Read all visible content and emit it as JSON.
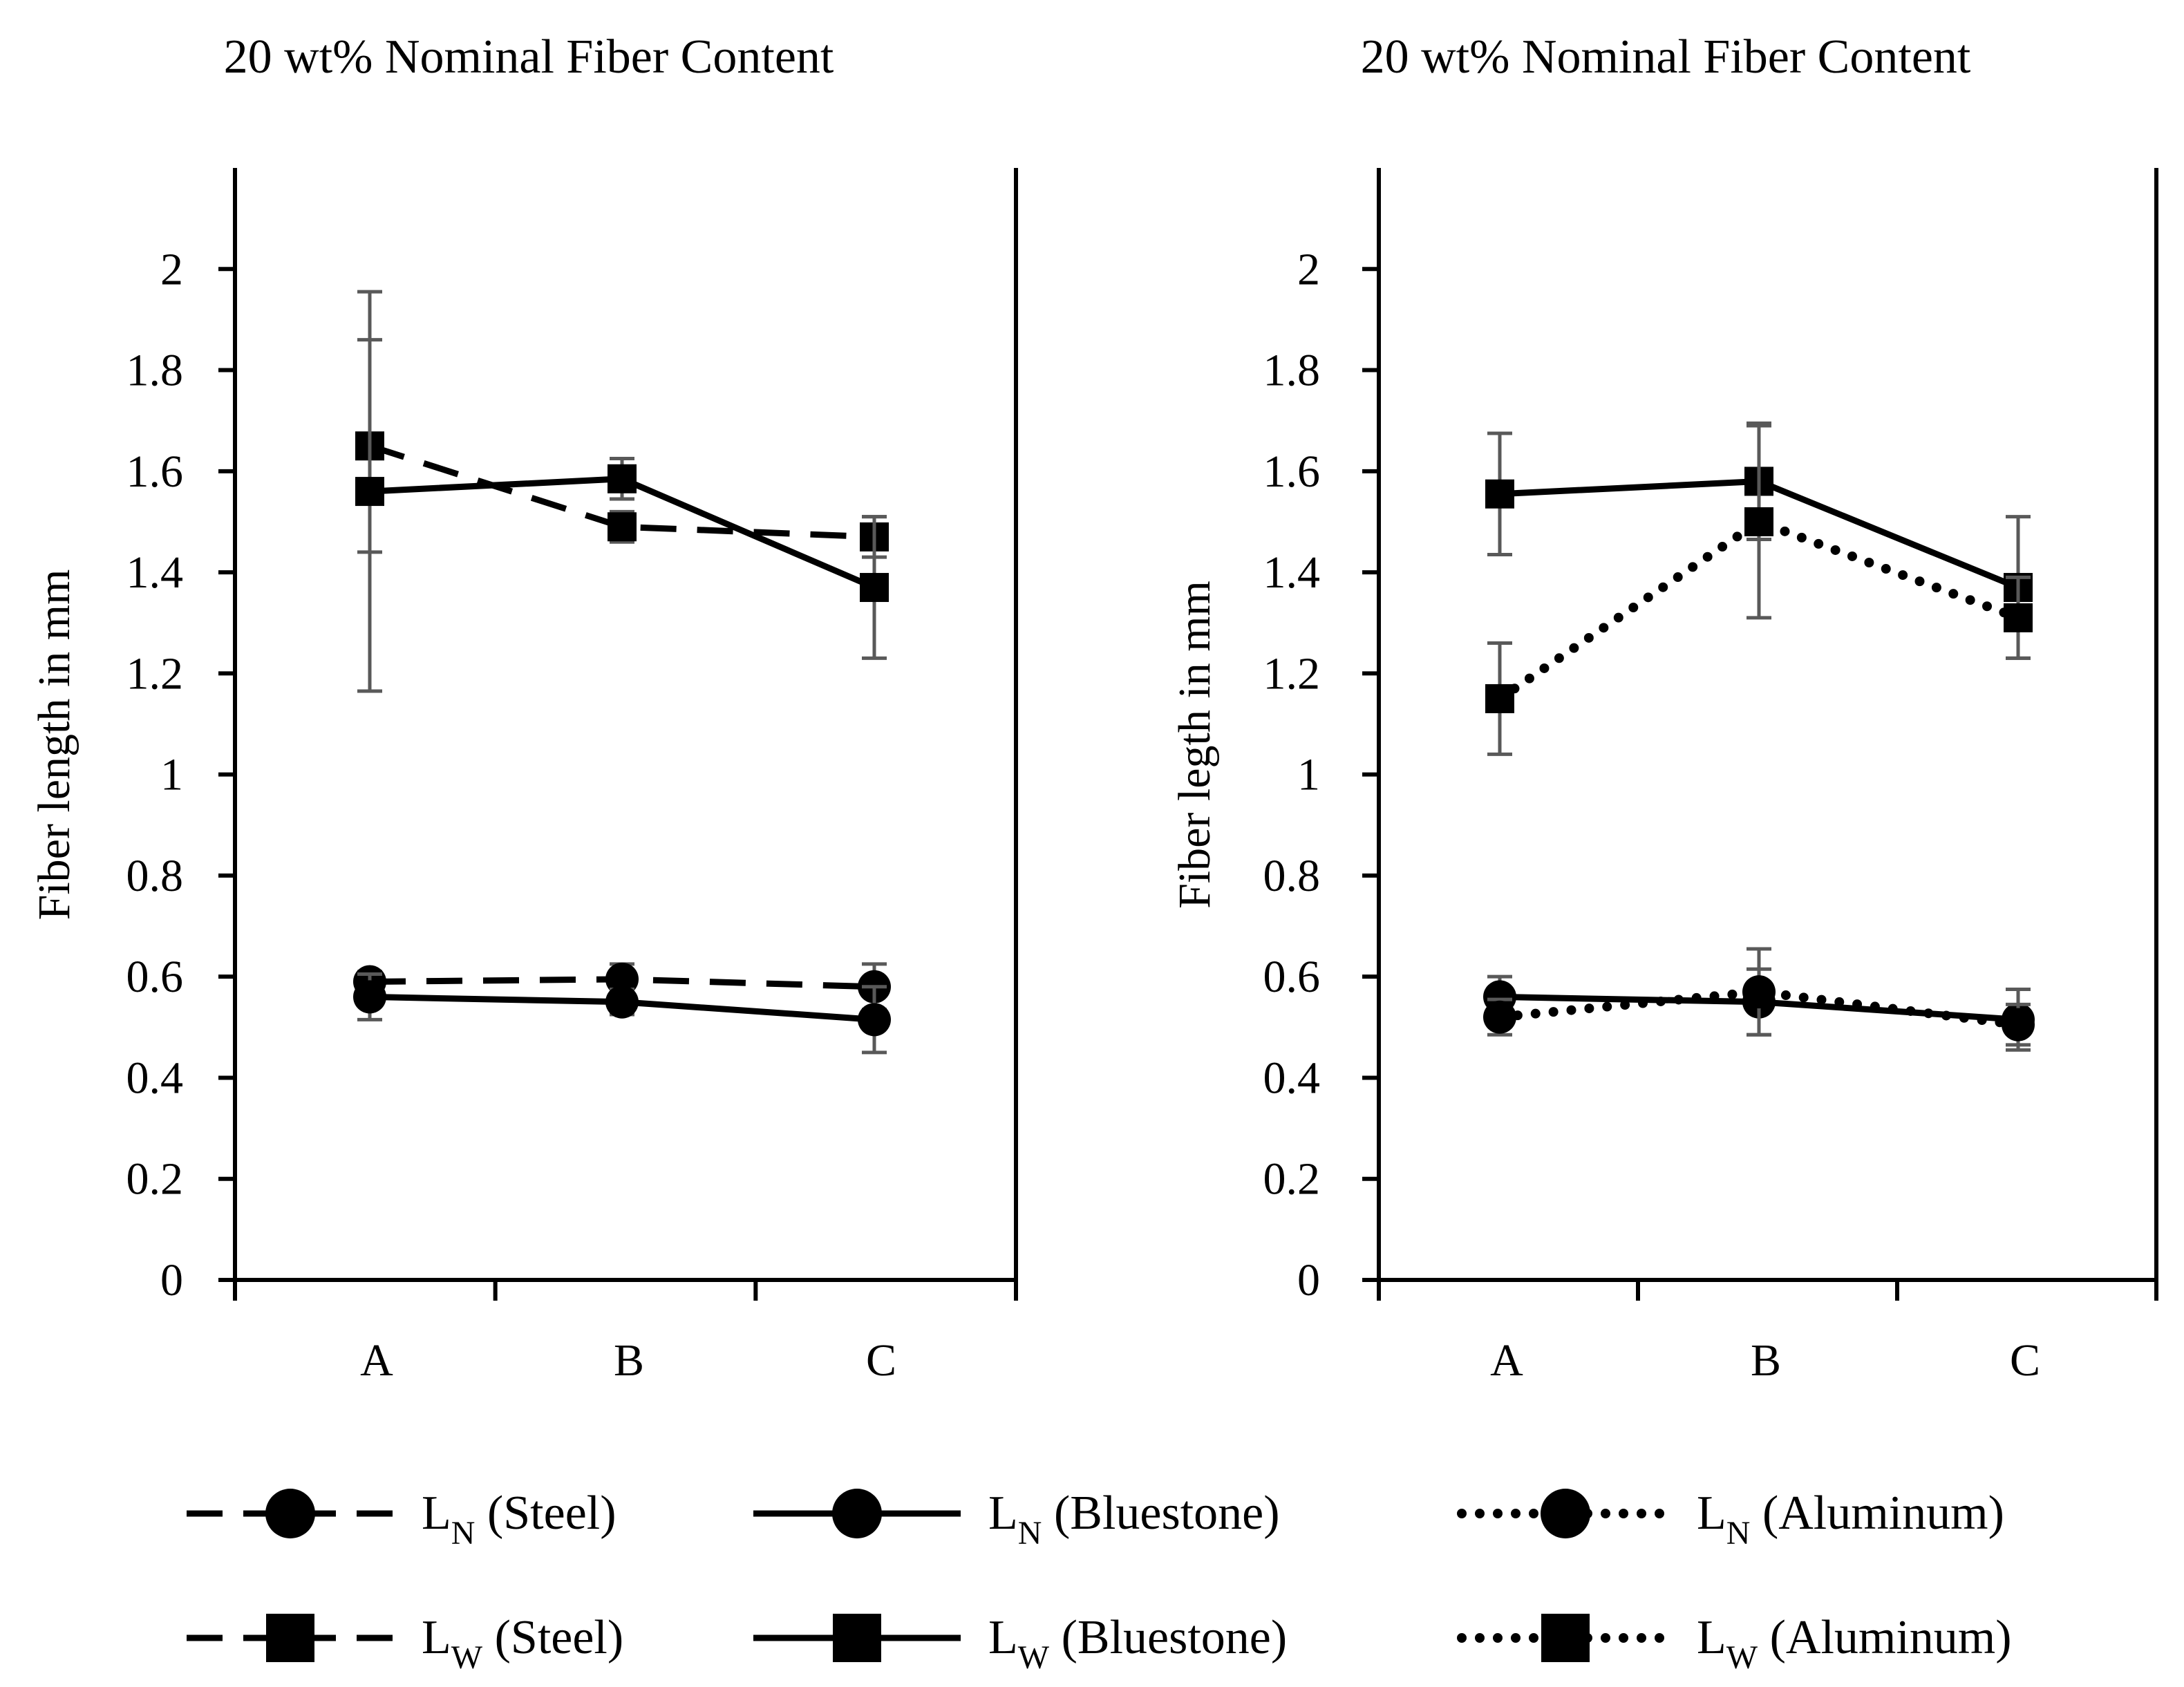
{
  "chart_data": [
    {
      "type": "line",
      "title": "20 wt% Nominal Fiber Content",
      "xlabel": "",
      "ylabel": "Fiber length in mm",
      "categories": [
        "A",
        "B",
        "C"
      ],
      "ylim": [
        0,
        2.2
      ],
      "yticks": [
        "0",
        "0.2",
        "0.4",
        "0.6",
        "0.8",
        "1",
        "1.2",
        "1.4",
        "1.6",
        "1.8",
        "2"
      ],
      "series": [
        {
          "name": "LN (Steel)",
          "marker": "circle",
          "style": "dashed",
          "values": [
            0.59,
            0.595,
            0.58
          ],
          "err": [
            0.02,
            0.03,
            0.045
          ]
        },
        {
          "name": "LW (Steel)",
          "marker": "square",
          "style": "dashed",
          "values": [
            1.65,
            1.49,
            1.47
          ],
          "err": [
            0.21,
            0.03,
            0.04
          ]
        },
        {
          "name": "LN (Bluestone)",
          "marker": "circle",
          "style": "solid",
          "values": [
            0.56,
            0.55,
            0.515
          ],
          "err": [
            0.045,
            0.025,
            0.065
          ]
        },
        {
          "name": "LW (Bluestone)",
          "marker": "square",
          "style": "solid",
          "values": [
            1.56,
            1.585,
            1.37
          ],
          "err": [
            0.395,
            0.04,
            0.14
          ]
        }
      ]
    },
    {
      "type": "line",
      "title": "20 wt% Nominal Fiber Content",
      "xlabel": "",
      "ylabel": "Fiber legth in  mm",
      "categories": [
        "A",
        "B",
        "C"
      ],
      "ylim": [
        0,
        2.2
      ],
      "yticks": [
        "0",
        "0.2",
        "0.4",
        "0.6",
        "0.8",
        "1",
        "1.2",
        "1.4",
        "1.6",
        "1.8",
        "2"
      ],
      "series": [
        {
          "name": "LN (Bluestone)",
          "marker": "circle",
          "style": "solid",
          "values": [
            0.56,
            0.55,
            0.515
          ],
          "err": [
            0.04,
            0.065,
            0.06
          ]
        },
        {
          "name": "LW (Bluestone)",
          "marker": "square",
          "style": "solid",
          "values": [
            1.555,
            1.58,
            1.37
          ],
          "err": [
            0.12,
            0.115,
            0.14
          ]
        },
        {
          "name": "LN (Aluminum)",
          "marker": "circle",
          "style": "dotted",
          "values": [
            0.52,
            0.57,
            0.505
          ],
          "err": [
            0.035,
            0.085,
            0.04
          ]
        },
        {
          "name": "LW (Aluminum)",
          "marker": "square",
          "style": "dotted",
          "values": [
            1.15,
            1.5,
            1.31
          ],
          "err": [
            0.11,
            0.19,
            0.08
          ]
        }
      ]
    }
  ],
  "legend": {
    "placement": "bottom",
    "items": [
      {
        "base": "L",
        "sub": "N",
        "rest": " (Steel)",
        "marker": "circle",
        "style": "dashed"
      },
      {
        "base": "L",
        "sub": "N",
        "rest": " (Bluestone)",
        "marker": "circle",
        "style": "solid"
      },
      {
        "base": "L",
        "sub": "N",
        "rest": " (Aluminum)",
        "marker": "circle",
        "style": "dotted"
      },
      {
        "base": "L",
        "sub": "W",
        "rest": " (Steel)",
        "marker": "square",
        "style": "dashed"
      },
      {
        "base": "L",
        "sub": "W",
        "rest": " (Bluestone)",
        "marker": "square",
        "style": "solid"
      },
      {
        "base": "L",
        "sub": "W",
        "rest": " (Aluminum)",
        "marker": "square",
        "style": "dotted"
      }
    ]
  },
  "colors": {
    "line": "#000000",
    "errorbar": "#595959",
    "background": "#ffffff"
  }
}
